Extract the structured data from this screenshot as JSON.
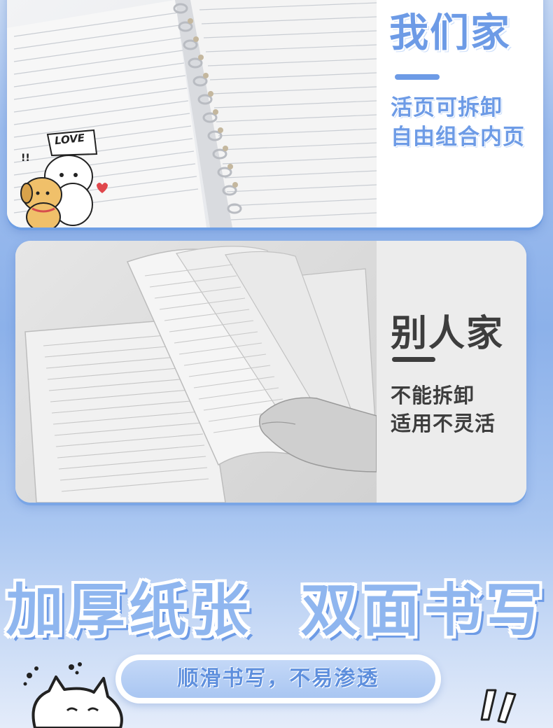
{
  "top_card": {
    "title": "我们家",
    "line1": "活页可拆卸",
    "line2": "自由组合内页",
    "sticker_text": "LOVE"
  },
  "bottom_card": {
    "title": "别人家",
    "line1": "不能拆卸",
    "line2": "适用不灵活"
  },
  "headline": "加厚纸张  双面书写",
  "pill_text": "顺滑书写，不易渗透",
  "colors": {
    "accent_blue": "#6d9be6",
    "headline_fill": "#8fb6ef",
    "gray_text": "#3d3d3d"
  },
  "icons": [
    "binder-notebook-photo",
    "dog-sticker-icon",
    "bound-notebook-photo",
    "cat-doodle-icon",
    "exclamation-doodle-icon"
  ]
}
